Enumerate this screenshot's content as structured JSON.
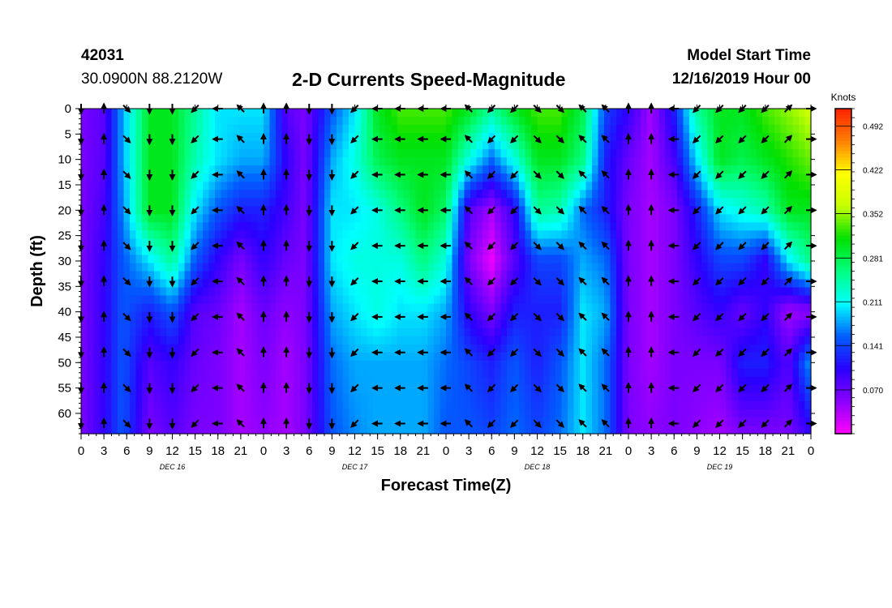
{
  "header": {
    "station_id": "42031",
    "coordinates": "30.0900N 88.2120W",
    "title": "2-D Currents Speed-Magnitude",
    "start_label": "Model Start Time",
    "start_value": "12/16/2019 Hour 00"
  },
  "colors": {
    "colormap": [
      "#ff00ff",
      "#8a00ff",
      "#2a00ff",
      "#0060ff",
      "#00ffff",
      "#00ff80",
      "#00e000",
      "#c8ff00",
      "#ffff00",
      "#ff8000",
      "#ff2000"
    ]
  },
  "chart_data": {
    "type": "heatmap",
    "title": "2-D Currents Speed-Magnitude",
    "xlabel": "Forecast Time(Z)",
    "ylabel": "Depth (ft)",
    "x_ticks": [
      "0",
      "3",
      "6",
      "9",
      "12",
      "15",
      "18",
      "21",
      "0",
      "3",
      "6",
      "9",
      "12",
      "15",
      "18",
      "21",
      "0",
      "3",
      "6",
      "9",
      "12",
      "15",
      "18",
      "21",
      "0",
      "3",
      "6",
      "9",
      "12",
      "15",
      "18",
      "21",
      "0"
    ],
    "date_labels": [
      "DEC 16",
      "DEC 17",
      "DEC 18",
      "DEC 19"
    ],
    "xlim_hours": [
      0,
      96
    ],
    "y_ticks": [
      0,
      5,
      10,
      15,
      20,
      25,
      30,
      35,
      40,
      45,
      50,
      55,
      60
    ],
    "ylim_ft": [
      0,
      64
    ],
    "y_inverted": true,
    "colorbar": {
      "unit_label": "Knots",
      "tick_labels": [
        "0.492",
        "0.422",
        "0.352",
        "0.281",
        "0.211",
        "0.141",
        "0.070"
      ],
      "tick_values": [
        0.492,
        0.422,
        0.352,
        0.281,
        0.211,
        0.141,
        0.07
      ],
      "range": [
        0.0,
        0.52
      ]
    },
    "speed_field": {
      "time_hours": [
        0,
        3,
        5.5,
        9,
        12,
        15,
        18,
        21,
        24,
        27,
        29.5,
        33,
        36,
        39,
        42,
        45,
        48,
        51,
        54,
        57,
        60,
        63,
        66,
        69,
        72,
        75,
        78,
        81,
        84,
        87,
        90,
        93,
        96
      ],
      "depth_ft": [
        0,
        10,
        20,
        30,
        40,
        50,
        64
      ],
      "knots": [
        [
          0.06,
          0.06,
          0.06,
          0.06,
          0.06,
          0.06,
          0.06
        ],
        [
          0.08,
          0.08,
          0.09,
          0.1,
          0.1,
          0.1,
          0.1
        ],
        [
          0.18,
          0.18,
          0.17,
          0.15,
          0.15,
          0.15,
          0.15
        ],
        [
          0.3,
          0.3,
          0.3,
          0.2,
          0.12,
          0.08,
          0.06
        ],
        [
          0.3,
          0.3,
          0.3,
          0.25,
          0.15,
          0.1,
          0.08
        ],
        [
          0.25,
          0.24,
          0.2,
          0.15,
          0.08,
          0.07,
          0.06
        ],
        [
          0.2,
          0.2,
          0.15,
          0.1,
          0.07,
          0.06,
          0.06
        ],
        [
          0.2,
          0.18,
          0.12,
          0.06,
          0.04,
          0.04,
          0.04
        ],
        [
          0.2,
          0.18,
          0.12,
          0.1,
          0.07,
          0.06,
          0.05
        ],
        [
          0.08,
          0.1,
          0.09,
          0.07,
          0.05,
          0.04,
          0.04
        ],
        [
          0.06,
          0.06,
          0.06,
          0.06,
          0.06,
          0.06,
          0.06
        ],
        [
          0.15,
          0.18,
          0.2,
          0.2,
          0.18,
          0.16,
          0.15
        ],
        [
          0.2,
          0.22,
          0.2,
          0.22,
          0.2,
          0.18,
          0.17
        ],
        [
          0.3,
          0.28,
          0.22,
          0.22,
          0.22,
          0.18,
          0.18
        ],
        [
          0.33,
          0.3,
          0.26,
          0.22,
          0.2,
          0.18,
          0.18
        ],
        [
          0.33,
          0.3,
          0.3,
          0.26,
          0.2,
          0.18,
          0.18
        ],
        [
          0.33,
          0.3,
          0.27,
          0.22,
          0.18,
          0.16,
          0.15
        ],
        [
          0.3,
          0.22,
          0.08,
          0.06,
          0.1,
          0.14,
          0.15
        ],
        [
          0.25,
          0.16,
          0.04,
          0.01,
          0.06,
          0.12,
          0.14
        ],
        [
          0.3,
          0.22,
          0.1,
          0.08,
          0.12,
          0.15,
          0.16
        ],
        [
          0.33,
          0.3,
          0.25,
          0.14,
          0.12,
          0.12,
          0.14
        ],
        [
          0.33,
          0.3,
          0.24,
          0.14,
          0.12,
          0.15,
          0.16
        ],
        [
          0.28,
          0.26,
          0.16,
          0.18,
          0.2,
          0.2,
          0.2
        ],
        [
          0.14,
          0.12,
          0.12,
          0.16,
          0.18,
          0.16,
          0.16
        ],
        [
          0.1,
          0.07,
          0.06,
          0.06,
          0.06,
          0.06,
          0.06
        ],
        [
          0.04,
          0.04,
          0.04,
          0.04,
          0.04,
          0.04,
          0.05
        ],
        [
          0.12,
          0.09,
          0.06,
          0.06,
          0.06,
          0.06,
          0.06
        ],
        [
          0.25,
          0.2,
          0.12,
          0.1,
          0.08,
          0.06,
          0.05
        ],
        [
          0.3,
          0.3,
          0.2,
          0.14,
          0.1,
          0.06,
          0.04
        ],
        [
          0.3,
          0.28,
          0.22,
          0.14,
          0.07,
          0.12,
          0.06
        ],
        [
          0.33,
          0.3,
          0.24,
          0.1,
          0.1,
          0.12,
          0.06
        ],
        [
          0.35,
          0.32,
          0.3,
          0.2,
          0.04,
          0.08,
          0.06
        ],
        [
          0.37,
          0.34,
          0.3,
          0.26,
          0.05,
          0.18,
          0.1
        ]
      ]
    },
    "vectors": {
      "time_hours": [
        0,
        3,
        6,
        9,
        12,
        15,
        18,
        21,
        24,
        27,
        30,
        33,
        36,
        39,
        42,
        45,
        48,
        51,
        54,
        57,
        60,
        63,
        66,
        69,
        72,
        75,
        78,
        81,
        84,
        87,
        90,
        93,
        96
      ],
      "depth_ft": [
        0,
        6,
        13,
        20,
        27,
        34,
        41,
        48,
        55,
        62
      ],
      "pattern_by_time": [
        "S",
        "N",
        "SE",
        "S",
        "S",
        "SW",
        "W",
        "NW",
        "N",
        "N",
        "S",
        "S",
        "SW",
        "W",
        "W",
        "W",
        "W",
        "NW",
        "SW",
        "SW",
        "SE",
        "SE",
        "NW",
        "NW",
        "N",
        "N",
        "W",
        "SW",
        "SW",
        "SW",
        "SW",
        "NE",
        "E"
      ]
    }
  }
}
